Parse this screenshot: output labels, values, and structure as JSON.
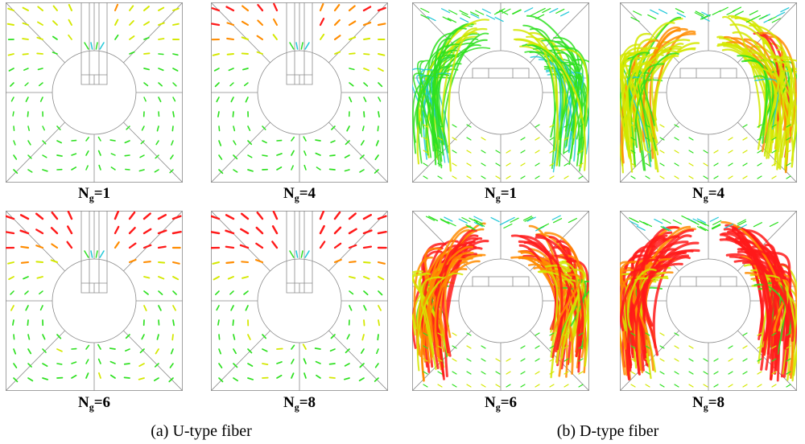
{
  "figure": {
    "captions": {
      "u_type": "(a) U-type fiber",
      "d_type": "(b) D-type fiber"
    },
    "label_prefix": "N",
    "label_subscript": "g",
    "panels": [
      {
        "id": "u1",
        "fiber": "U",
        "ng": "1",
        "label_value": "=1"
      },
      {
        "id": "u4",
        "fiber": "U",
        "ng": "4",
        "label_value": "=4"
      },
      {
        "id": "u6",
        "fiber": "U",
        "ng": "6",
        "label_value": "=6"
      },
      {
        "id": "u8",
        "fiber": "U",
        "ng": "8",
        "label_value": "=8"
      },
      {
        "id": "d1",
        "fiber": "D",
        "ng": "1",
        "label_value": "=1"
      },
      {
        "id": "d4",
        "fiber": "D",
        "ng": "4",
        "label_value": "=4"
      },
      {
        "id": "d6",
        "fiber": "D",
        "ng": "6",
        "label_value": "=6"
      },
      {
        "id": "d8",
        "fiber": "D",
        "ng": "8",
        "label_value": "=8"
      }
    ],
    "colors": {
      "mesh": "#8a8a8a",
      "hot": "#ff1a1a",
      "warm": "#ff8c00",
      "mid": "#d4e800",
      "cool": "#2ee020",
      "cold": "#20c8d8",
      "magenta": "#ff3da8"
    }
  }
}
